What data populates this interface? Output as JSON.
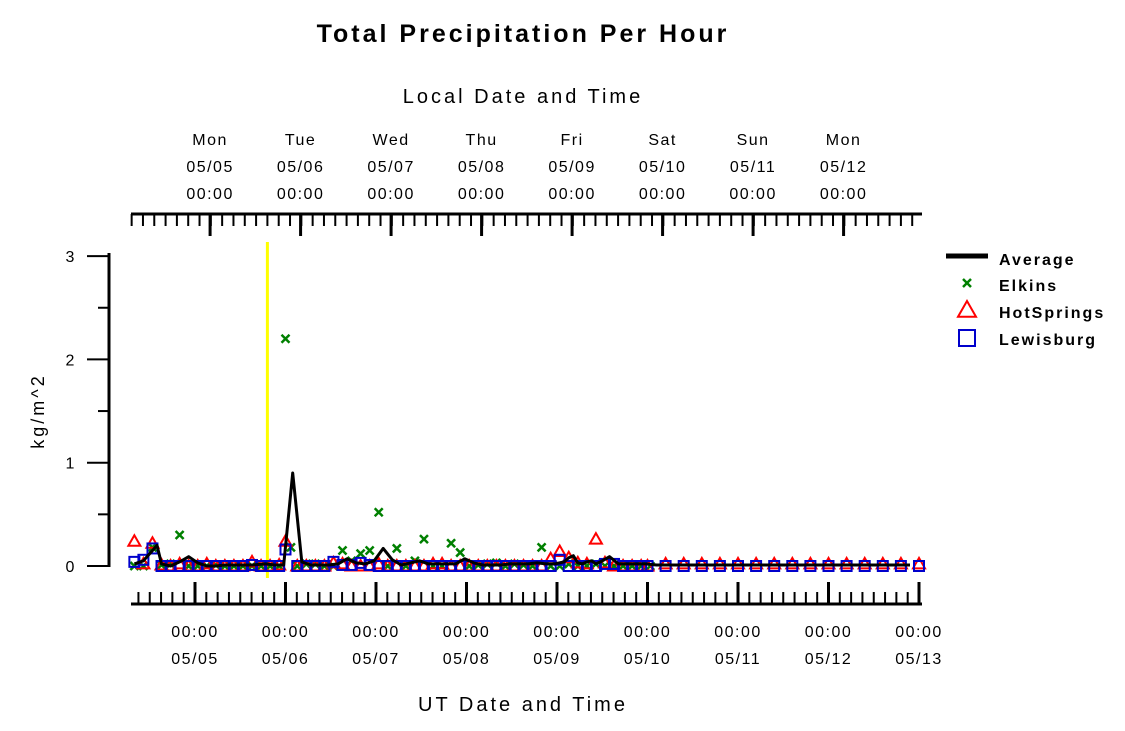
{
  "colors": {
    "average": "#000000",
    "elkins": "#008000",
    "hotsprings": "#ff0000",
    "lewisburg": "#0000cc",
    "marker_line": "#ffff00"
  },
  "chart_data": {
    "type": "line",
    "title": "Total Precipitation Per Hour",
    "top_axis_title": "Local Date and Time",
    "xlabel": "UT Date and Time",
    "ylabel": "kg/m^2",
    "ylim": [
      0,
      3
    ],
    "yticks": [
      "0",
      "1",
      "2",
      "3"
    ],
    "grid": false,
    "legend_position": "right",
    "x_unit": "UT day",
    "xlim": [
      4.0,
      12.0
    ],
    "marker_line_x": 4.8,
    "top_ticks": [
      {
        "x": 4.1667,
        "day": "Mon",
        "date": "05/05",
        "time": "00:00"
      },
      {
        "x": 5.1667,
        "day": "Tue",
        "date": "05/06",
        "time": "00:00"
      },
      {
        "x": 6.1667,
        "day": "Wed",
        "date": "05/07",
        "time": "00:00"
      },
      {
        "x": 7.1667,
        "day": "Thu",
        "date": "05/08",
        "time": "00:00"
      },
      {
        "x": 8.1667,
        "day": "Fri",
        "date": "05/09",
        "time": "00:00"
      },
      {
        "x": 9.1667,
        "day": "Sat",
        "date": "05/10",
        "time": "00:00"
      },
      {
        "x": 10.1667,
        "day": "Sun",
        "date": "05/11",
        "time": "00:00"
      },
      {
        "x": 11.1667,
        "day": "Mon",
        "date": "05/12",
        "time": "00:00"
      }
    ],
    "bottom_ticks": [
      {
        "x": 4,
        "time": "00:00",
        "date": "05/05"
      },
      {
        "x": 5,
        "time": "00:00",
        "date": "05/06"
      },
      {
        "x": 6,
        "time": "00:00",
        "date": "05/07"
      },
      {
        "x": 7,
        "time": "00:00",
        "date": "05/08"
      },
      {
        "x": 8,
        "time": "00:00",
        "date": "05/09"
      },
      {
        "x": 9,
        "time": "00:00",
        "date": "05/10"
      },
      {
        "x": 10,
        "time": "00:00",
        "date": "05/11"
      },
      {
        "x": 11,
        "time": "00:00",
        "date": "05/12"
      },
      {
        "x": 12,
        "time": "00:00",
        "date": "05/13"
      }
    ],
    "series": [
      {
        "name": "Average",
        "style": "line",
        "x": [
          3.33,
          3.43,
          3.53,
          3.58,
          3.63,
          3.73,
          3.83,
          3.93,
          4.03,
          4.13,
          4.23,
          4.33,
          4.48,
          4.63,
          4.78,
          4.88,
          4.98,
          5.08,
          5.18,
          5.28,
          5.38,
          5.48,
          5.58,
          5.68,
          5.78,
          5.88,
          5.98,
          6.08,
          6.18,
          6.28,
          6.38,
          6.48,
          6.58,
          6.68,
          6.78,
          6.88,
          6.98,
          7.08,
          7.18,
          7.28,
          7.38,
          7.48,
          7.58,
          7.68,
          7.78,
          7.88,
          7.98,
          8.08,
          8.13,
          8.18,
          8.23,
          8.28,
          8.33,
          8.38,
          8.43,
          8.48,
          8.58,
          8.68,
          8.78,
          8.88,
          8.98,
          9.1,
          9.3,
          9.5,
          9.7,
          9.9,
          10.1,
          10.3,
          10.5,
          10.7,
          10.9,
          11.1,
          11.3,
          11.5,
          11.7,
          11.9
        ],
        "y": [
          0.02,
          0.05,
          0.15,
          0.2,
          0.02,
          0.0,
          0.04,
          0.09,
          0.03,
          0.0,
          0.0,
          0.01,
          0.01,
          0.01,
          0.02,
          0.01,
          0.01,
          0.9,
          0.04,
          0.01,
          0.01,
          0.01,
          0.02,
          0.07,
          0.03,
          0.02,
          0.05,
          0.17,
          0.06,
          0.01,
          0.03,
          0.05,
          0.02,
          0.02,
          0.02,
          0.02,
          0.07,
          0.03,
          0.01,
          0.01,
          0.01,
          0.02,
          0.02,
          0.02,
          0.03,
          0.02,
          0.02,
          0.04,
          0.08,
          0.1,
          0.03,
          0.02,
          0.04,
          0.05,
          0.02,
          0.04,
          0.09,
          0.02,
          0.02,
          0.02,
          0.02,
          0.01,
          0.01,
          0.01,
          0.01,
          0.01,
          0.01,
          0.01,
          0.01,
          0.01,
          0.01,
          0.01,
          0.01,
          0.01,
          0.01,
          0.01
        ]
      },
      {
        "name": "Elkins",
        "style": "x",
        "x": [
          3.33,
          3.43,
          3.53,
          3.63,
          3.73,
          3.83,
          3.93,
          4.03,
          4.13,
          4.23,
          4.33,
          4.43,
          4.53,
          4.63,
          4.73,
          4.83,
          4.93,
          5.0,
          5.06,
          5.13,
          5.23,
          5.33,
          5.43,
          5.53,
          5.63,
          5.73,
          5.83,
          5.93,
          6.03,
          6.13,
          6.23,
          6.33,
          6.43,
          6.53,
          6.63,
          6.73,
          6.83,
          6.93,
          7.03,
          7.13,
          7.23,
          7.33,
          7.43,
          7.53,
          7.63,
          7.73,
          7.83,
          7.93,
          8.03,
          8.13,
          8.23,
          8.33,
          8.43,
          8.53,
          8.63,
          8.73,
          8.83,
          8.93,
          9.03
        ],
        "y": [
          0.0,
          0.0,
          0.18,
          0.01,
          0.02,
          0.3,
          0.0,
          0.0,
          0.0,
          0.01,
          0.0,
          0.0,
          0.0,
          0.0,
          0.0,
          0.0,
          0.0,
          2.2,
          0.18,
          0.0,
          0.02,
          0.02,
          0.0,
          0.0,
          0.15,
          0.05,
          0.12,
          0.15,
          0.52,
          0.0,
          0.17,
          0.0,
          0.05,
          0.26,
          0.0,
          0.0,
          0.22,
          0.13,
          0.0,
          0.01,
          0.02,
          0.03,
          0.0,
          0.02,
          0.01,
          0.0,
          0.18,
          0.0,
          0.0,
          0.02,
          0.0,
          0.0,
          0.02,
          0.0,
          0.0,
          0.0,
          0.0,
          0.0,
          0.0
        ]
      },
      {
        "name": "HotSprings",
        "style": "triangle",
        "x": [
          3.33,
          3.43,
          3.53,
          3.63,
          3.73,
          3.83,
          3.93,
          4.03,
          4.13,
          4.23,
          4.33,
          4.43,
          4.53,
          4.63,
          4.73,
          4.83,
          4.93,
          5.0,
          5.13,
          5.23,
          5.33,
          5.43,
          5.53,
          5.63,
          5.73,
          5.83,
          5.93,
          6.03,
          6.13,
          6.23,
          6.33,
          6.43,
          6.53,
          6.63,
          6.73,
          6.83,
          6.93,
          7.03,
          7.13,
          7.23,
          7.33,
          7.43,
          7.53,
          7.63,
          7.73,
          7.83,
          7.93,
          8.03,
          8.13,
          8.23,
          8.33,
          8.43,
          8.53,
          8.63,
          8.73,
          8.83,
          8.93,
          9.0,
          9.2,
          9.4,
          9.6,
          9.8,
          10.0,
          10.2,
          10.4,
          10.6,
          10.8,
          11.0,
          11.2,
          11.4,
          11.6,
          11.8,
          12.0
        ],
        "y": [
          0.24,
          0.02,
          0.22,
          0.01,
          0.0,
          0.02,
          0.0,
          0.0,
          0.02,
          0.0,
          0.0,
          0.0,
          0.0,
          0.04,
          0.0,
          0.0,
          0.01,
          0.24,
          0.0,
          0.0,
          0.0,
          0.0,
          0.03,
          0.02,
          0.0,
          0.0,
          0.0,
          0.02,
          0.0,
          0.0,
          0.0,
          0.0,
          0.0,
          0.02,
          0.02,
          0.0,
          0.0,
          0.0,
          0.0,
          0.0,
          0.0,
          0.0,
          0.0,
          0.0,
          0.0,
          0.0,
          0.07,
          0.14,
          0.08,
          0.03,
          0.02,
          0.26,
          0.03,
          0.0,
          0.0,
          0.0,
          0.0,
          0.0,
          0.02,
          0.02,
          0.02,
          0.02,
          0.02,
          0.02,
          0.02,
          0.02,
          0.02,
          0.02,
          0.02,
          0.02,
          0.02,
          0.02,
          0.02
        ]
      },
      {
        "name": "Lewisburg",
        "style": "square",
        "x": [
          3.33,
          3.43,
          3.53,
          3.63,
          3.73,
          3.83,
          3.93,
          4.03,
          4.13,
          4.23,
          4.33,
          4.43,
          4.53,
          4.63,
          4.73,
          4.83,
          4.93,
          5.0,
          5.13,
          5.23,
          5.33,
          5.43,
          5.53,
          5.63,
          5.73,
          5.83,
          5.93,
          6.03,
          6.13,
          6.23,
          6.33,
          6.43,
          6.53,
          6.63,
          6.73,
          6.83,
          6.93,
          7.03,
          7.13,
          7.23,
          7.33,
          7.43,
          7.53,
          7.63,
          7.73,
          7.83,
          7.93,
          8.03,
          8.13,
          8.23,
          8.33,
          8.43,
          8.53,
          8.63,
          8.73,
          8.83,
          8.93,
          9.0,
          9.2,
          9.4,
          9.6,
          9.8,
          10.0,
          10.2,
          10.4,
          10.6,
          10.8,
          11.0,
          11.2,
          11.4,
          11.6,
          11.8,
          12.0
        ],
        "y": [
          0.04,
          0.06,
          0.17,
          0.0,
          0.0,
          0.0,
          0.0,
          0.0,
          0.0,
          0.0,
          0.0,
          0.0,
          0.0,
          0.01,
          0.0,
          0.0,
          0.0,
          0.16,
          0.0,
          0.0,
          0.0,
          0.0,
          0.04,
          0.01,
          0.01,
          0.03,
          0.01,
          0.0,
          0.0,
          0.0,
          0.0,
          0.0,
          0.0,
          0.0,
          0.0,
          0.0,
          0.0,
          0.0,
          0.0,
          0.0,
          0.0,
          0.0,
          0.0,
          0.0,
          0.0,
          0.0,
          0.0,
          0.06,
          0.0,
          0.0,
          0.0,
          0.0,
          0.02,
          0.02,
          0.0,
          0.0,
          0.0,
          0.0,
          0.0,
          0.0,
          0.0,
          0.0,
          0.0,
          0.0,
          0.0,
          0.0,
          0.0,
          0.0,
          0.0,
          0.0,
          0.0,
          0.0,
          0.0
        ]
      }
    ]
  }
}
